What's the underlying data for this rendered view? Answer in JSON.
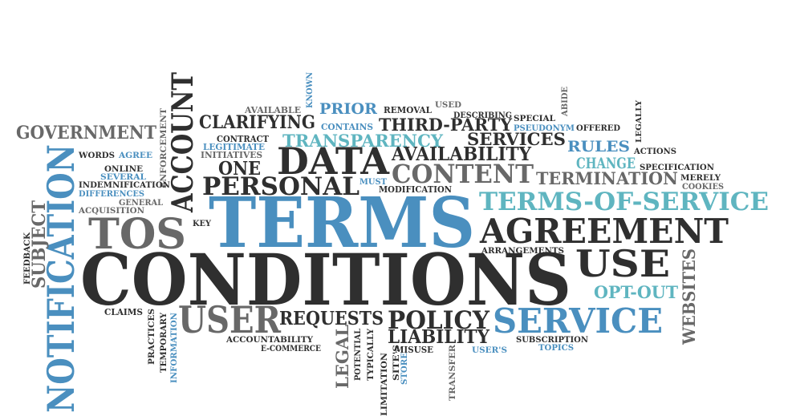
{
  "words": [
    "GOVERNMENT",
    "ACCOUNT",
    "CLARIFYING",
    "AVAILABLE",
    "KNOWN",
    "PRIOR",
    "REMOVAL",
    "USED",
    "DESCRIBING",
    "ABIDE",
    "SPECIAL",
    "LEGALLY",
    "CONTAINS",
    "THIRD-PARTY",
    "PSEUDONYM",
    "OFFERED",
    "CONTRACT",
    "LEGITIMATE",
    "INITIATIVES",
    "TRANSPARENCY",
    "SERVICES",
    "RULES",
    "ACTIONS",
    "ENFORCEMENT",
    "WORDS",
    "AGREE",
    "NOTIFICATION",
    "SUBJECT",
    "FEEDBACK",
    "ONLINE",
    "SEVERAL",
    "INDEMNIFICATION",
    "DIFFERENCES",
    "GENERAL",
    "ACQUISITION",
    "ONE",
    "DATA",
    "AVAILABILITY",
    "CHANGE",
    "SPECIFICATION",
    "CONTENT",
    "TERMINATION",
    "MERELY",
    "COOKIES",
    "PERSONAL",
    "MUST",
    "MODIFICATION",
    "TERMS-OF-SERVICE",
    "KEY",
    "TERMS",
    "TOS",
    "AGREEMENT",
    "ARRANGEMENTS",
    "USE",
    "WEBSITES",
    "CONDITIONS",
    "OPT-OUT",
    "CLAIMS",
    "PRACTICES",
    "TEMPORARY",
    "INFORMATION",
    "USER",
    "REQUESTS",
    "POLICY",
    "SERVICE",
    "ACCOUNTABILITY",
    "E-COMMERCE",
    "LEGAL",
    "POTENTIAL",
    "TYPICALLY",
    "LIMITATION",
    "SITE'S",
    "STORE",
    "LIABILITY",
    "MISUSE",
    "USER'S",
    "SUBSCRIPTION",
    "TOPICS",
    "TRANSFER"
  ]
}
